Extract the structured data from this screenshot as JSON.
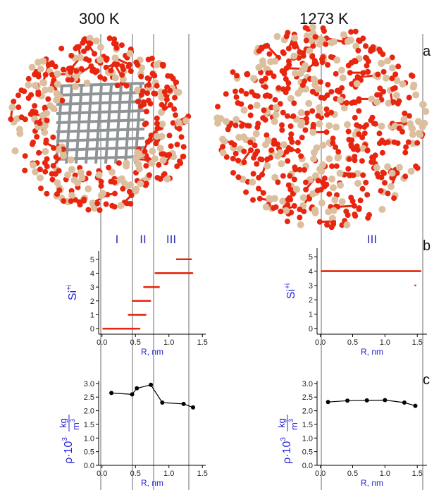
{
  "columns": [
    {
      "title": "300 K"
    },
    {
      "title": "1273 K"
    }
  ],
  "panel_letters": [
    "a",
    "b",
    "c"
  ],
  "colors": {
    "oxygen": "#e8250f",
    "silicon": "#dcbf9f",
    "core": "#8f9497",
    "points": "#e8250f",
    "line": "#000000",
    "axis_label": "#2424d6",
    "region_label": "#2f2fb4",
    "guide": "#b5b5b5"
  },
  "region_labels_300K": [
    "I",
    "II",
    "III"
  ],
  "region_label_1273K": "III",
  "chart_data": [
    {
      "type": "scatter",
      "panel": "b",
      "column": "300 K",
      "xlabel": "R, nm",
      "ylabel": "Si+i",
      "ylabel_base": "Si",
      "ylabel_sup": "+i",
      "xlim": [
        -0.05,
        1.55
      ],
      "ylim": [
        -0.4,
        5.6
      ],
      "xticks": [
        "0.0",
        "0.5",
        "1.0",
        "1.5"
      ],
      "yticks": [
        "0",
        "1",
        "2",
        "3",
        "4",
        "5"
      ],
      "series": [
        {
          "y": 0,
          "x": [
            0.02,
            0.56
          ]
        },
        {
          "y": 1,
          "x": [
            0.4,
            0.65
          ]
        },
        {
          "y": 2,
          "x": [
            0.46,
            0.72
          ]
        },
        {
          "y": 3,
          "x": [
            0.63,
            0.85
          ]
        },
        {
          "y": 4,
          "x": [
            0.8,
            1.35
          ]
        },
        {
          "y": 5,
          "x": [
            1.12,
            1.33
          ]
        }
      ]
    },
    {
      "type": "scatter",
      "panel": "b",
      "column": "1273 K",
      "xlabel": "R, nm",
      "ylabel": "Si+i",
      "ylabel_base": "Si",
      "ylabel_sup": "+i",
      "xlim": [
        -0.05,
        1.65
      ],
      "ylim": [
        -0.4,
        5.6
      ],
      "xticks": [
        "0.0",
        "0.5",
        "1.0",
        "1.5"
      ],
      "yticks": [
        "0",
        "1",
        "2",
        "3",
        "4",
        "5"
      ],
      "series": [
        {
          "y": 4,
          "x": [
            0.02,
            1.55
          ]
        },
        {
          "y": 3,
          "x": [
            1.47,
            1.47
          ]
        }
      ]
    },
    {
      "type": "line",
      "panel": "c",
      "column": "300 K",
      "xlabel": "R, nm",
      "ylabel": "ρ·10³, kg/m³",
      "ylabel_main": "ρ·10",
      "ylabel_exp": "3",
      "ylabel_frac_num": "kg",
      "ylabel_frac_den": "m",
      "ylabel_frac_den_exp": "3",
      "xlim": [
        -0.05,
        1.55
      ],
      "ylim": [
        0.0,
        3.1
      ],
      "xticks": [
        "0.0",
        "0.5",
        "1.0",
        "1.5"
      ],
      "yticks": [
        "0.0",
        "0.5",
        "1.0",
        "1.5",
        "2.0",
        "2.5",
        "3.0"
      ],
      "x": [
        0.14,
        0.45,
        0.52,
        0.73,
        0.9,
        1.22,
        1.36
      ],
      "y": [
        2.65,
        2.6,
        2.82,
        2.95,
        2.3,
        2.25,
        2.12
      ]
    },
    {
      "type": "line",
      "panel": "c",
      "column": "1273 K",
      "xlabel": "R, nm",
      "ylabel": "ρ·10³, kg/m³",
      "ylabel_main": "ρ·10",
      "ylabel_exp": "3",
      "ylabel_frac_num": "kg",
      "ylabel_frac_den": "m",
      "ylabel_frac_den_exp": "3",
      "xlim": [
        -0.05,
        1.65
      ],
      "ylim": [
        0.0,
        3.1
      ],
      "xticks": [
        "0.0",
        "0.5",
        "1.0",
        "1.5"
      ],
      "yticks": [
        "0.0",
        "0.5",
        "1.0",
        "1.5",
        "2.0",
        "2.5",
        "3.0"
      ],
      "x": [
        0.12,
        0.42,
        0.72,
        1.0,
        1.3,
        1.47
      ],
      "y": [
        2.32,
        2.37,
        2.38,
        2.39,
        2.3,
        2.18
      ]
    }
  ]
}
